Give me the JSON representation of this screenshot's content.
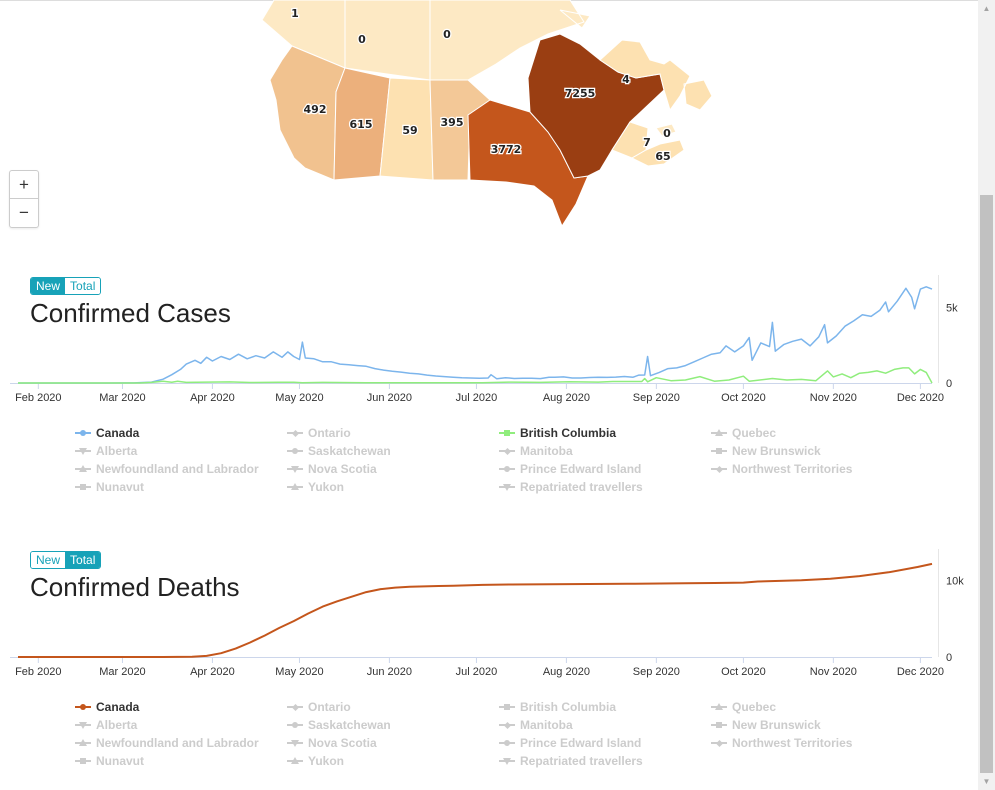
{
  "map": {
    "zoom_in": "+",
    "zoom_out": "−",
    "regions": [
      {
        "name": "Yukon",
        "value": "1",
        "color": "#fde9c4"
      },
      {
        "name": "Northwest Territories",
        "value": "0",
        "color": "#fde9c4"
      },
      {
        "name": "Nunavut",
        "value": "0",
        "color": "#fde9c4"
      },
      {
        "name": "British Columbia",
        "value": "492",
        "color": "#f1c28f"
      },
      {
        "name": "Alberta",
        "value": "615",
        "color": "#ecb07c"
      },
      {
        "name": "Saskatchewan",
        "value": "59",
        "color": "#fde1b1"
      },
      {
        "name": "Manitoba",
        "value": "395",
        "color": "#f3c897"
      },
      {
        "name": "Ontario",
        "value": "3772",
        "color": "#c4561c"
      },
      {
        "name": "Quebec",
        "value": "7255",
        "color": "#9a3e12"
      },
      {
        "name": "Newfoundland and Labrador",
        "value": "4",
        "color": "#fde1b1"
      },
      {
        "name": "New Brunswick",
        "value": "7",
        "color": "#fde1b1"
      },
      {
        "name": "Prince Edward Island",
        "value": "0",
        "color": "#fde9c4"
      },
      {
        "name": "Nova Scotia",
        "value": "65",
        "color": "#fde1b1"
      }
    ]
  },
  "cases": {
    "toggle": {
      "new": "New",
      "total": "Total",
      "active": "new"
    },
    "title": "Confirmed Cases"
  },
  "deaths": {
    "toggle": {
      "new": "New",
      "total": "Total",
      "active": "total"
    },
    "title": "Confirmed Deaths"
  },
  "legend_items": [
    {
      "label": "Canada",
      "marker": "circle"
    },
    {
      "label": "Ontario",
      "marker": "diamond"
    },
    {
      "label": "British Columbia",
      "marker": "square"
    },
    {
      "label": "Quebec",
      "marker": "triangle"
    },
    {
      "label": "Alberta",
      "marker": "triangle-down"
    },
    {
      "label": "Saskatchewan",
      "marker": "circle"
    },
    {
      "label": "Manitoba",
      "marker": "diamond"
    },
    {
      "label": "New Brunswick",
      "marker": "square"
    },
    {
      "label": "Newfoundland and Labrador",
      "marker": "triangle"
    },
    {
      "label": "Nova Scotia",
      "marker": "triangle-down"
    },
    {
      "label": "Prince Edward Island",
      "marker": "circle"
    },
    {
      "label": "Northwest Territories",
      "marker": "diamond"
    },
    {
      "label": "Nunavut",
      "marker": "square"
    },
    {
      "label": "Yukon",
      "marker": "triangle"
    },
    {
      "label": "Repatriated travellers",
      "marker": "triangle-down"
    }
  ],
  "cases_legend_active": {
    "Canada": "#7cb5ec",
    "British Columbia": "#90ed7d"
  },
  "deaths_legend_active": {
    "Canada": "#c4561c"
  },
  "chart_data": [
    {
      "type": "line",
      "title": "Confirmed Cases",
      "x_unit": "days since 2020-01-25",
      "x_ticks": [
        "Feb 2020",
        "Mar 2020",
        "Apr 2020",
        "May 2020",
        "Jun 2020",
        "Jul 2020",
        "Aug 2020",
        "Sep 2020",
        "Oct 2020",
        "Nov 2020",
        "Dec 2020"
      ],
      "x_tick_days": [
        7,
        36,
        67,
        97,
        128,
        158,
        189,
        220,
        250,
        281,
        311
      ],
      "x_range": [
        0,
        315
      ],
      "y_ticks": [
        "0",
        "5k"
      ],
      "y_tick_values": [
        0,
        5000
      ],
      "ylim": [
        0,
        6800
      ],
      "series": [
        {
          "name": "Canada",
          "color": "#7cb5ec",
          "points": [
            [
              0,
              0
            ],
            [
              30,
              0
            ],
            [
              40,
              5
            ],
            [
              46,
              60
            ],
            [
              50,
              250
            ],
            [
              53,
              550
            ],
            [
              56,
              900
            ],
            [
              58,
              1250
            ],
            [
              61,
              1500
            ],
            [
              63,
              1300
            ],
            [
              65,
              1700
            ],
            [
              67,
              1450
            ],
            [
              70,
              1750
            ],
            [
              73,
              1550
            ],
            [
              76,
              1900
            ],
            [
              79,
              1600
            ],
            [
              82,
              1800
            ],
            [
              85,
              1650
            ],
            [
              88,
              2050
            ],
            [
              91,
              1700
            ],
            [
              93,
              2050
            ],
            [
              95,
              1750
            ],
            [
              97,
              1550
            ],
            [
              98,
              2700
            ],
            [
              99,
              1650
            ],
            [
              102,
              1600
            ],
            [
              105,
              1400
            ],
            [
              108,
              1400
            ],
            [
              111,
              1250
            ],
            [
              114,
              1200
            ],
            [
              117,
              1150
            ],
            [
              120,
              1100
            ],
            [
              123,
              950
            ],
            [
              126,
              850
            ],
            [
              129,
              780
            ],
            [
              132,
              720
            ],
            [
              135,
              650
            ],
            [
              138,
              600
            ],
            [
              141,
              520
            ],
            [
              144,
              460
            ],
            [
              147,
              420
            ],
            [
              150,
              380
            ],
            [
              153,
              350
            ],
            [
              156,
              330
            ],
            [
              159,
              320
            ],
            [
              162,
              330
            ],
            [
              163,
              550
            ],
            [
              165,
              280
            ],
            [
              168,
              350
            ],
            [
              171,
              300
            ],
            [
              174,
              320
            ],
            [
              177,
              320
            ],
            [
              180,
              290
            ],
            [
              183,
              380
            ],
            [
              185,
              380
            ],
            [
              188,
              400
            ],
            [
              191,
              330
            ],
            [
              194,
              330
            ],
            [
              197,
              360
            ],
            [
              200,
              380
            ],
            [
              203,
              370
            ],
            [
              206,
              390
            ],
            [
              209,
              430
            ],
            [
              212,
              380
            ],
            [
              214,
              520
            ],
            [
              216,
              530
            ],
            [
              217,
              1750
            ],
            [
              218,
              480
            ],
            [
              221,
              700
            ],
            [
              224,
              950
            ],
            [
              227,
              1000
            ],
            [
              230,
              1150
            ],
            [
              233,
              1400
            ],
            [
              236,
              1650
            ],
            [
              239,
              1900
            ],
            [
              242,
              2000
            ],
            [
              244,
              2450
            ],
            [
              247,
              2050
            ],
            [
              250,
              2450
            ],
            [
              252,
              3000
            ],
            [
              253,
              1500
            ],
            [
              256,
              2650
            ],
            [
              259,
              2400
            ],
            [
              260,
              4000
            ],
            [
              261,
              2100
            ],
            [
              264,
              2550
            ],
            [
              267,
              2750
            ],
            [
              270,
              2900
            ],
            [
              273,
              2450
            ],
            [
              276,
              3050
            ],
            [
              278,
              3850
            ],
            [
              279,
              2650
            ],
            [
              282,
              3100
            ],
            [
              285,
              3750
            ],
            [
              288,
              4100
            ],
            [
              291,
              4500
            ],
            [
              294,
              4400
            ],
            [
              297,
              4800
            ],
            [
              299,
              5350
            ],
            [
              300,
              4700
            ],
            [
              303,
              5400
            ],
            [
              306,
              6250
            ],
            [
              308,
              5650
            ],
            [
              309,
              4900
            ],
            [
              311,
              6200
            ],
            [
              313,
              6350
            ],
            [
              315,
              6200
            ]
          ]
        },
        {
          "name": "British Columbia",
          "color": "#90ed7d",
          "points": [
            [
              0,
              0
            ],
            [
              42,
              0
            ],
            [
              46,
              40
            ],
            [
              50,
              120
            ],
            [
              53,
              50
            ],
            [
              55,
              110
            ],
            [
              58,
              40
            ],
            [
              65,
              60
            ],
            [
              73,
              70
            ],
            [
              80,
              30
            ],
            [
              90,
              50
            ],
            [
              95,
              50
            ],
            [
              98,
              20
            ],
            [
              105,
              40
            ],
            [
              120,
              20
            ],
            [
              140,
              10
            ],
            [
              160,
              20
            ],
            [
              170,
              60
            ],
            [
              180,
              40
            ],
            [
              190,
              80
            ],
            [
              200,
              60
            ],
            [
              205,
              100
            ],
            [
              215,
              100
            ],
            [
              216,
              300
            ],
            [
              217,
              80
            ],
            [
              220,
              350
            ],
            [
              225,
              150
            ],
            [
              230,
              200
            ],
            [
              235,
              420
            ],
            [
              240,
              120
            ],
            [
              245,
              200
            ],
            [
              250,
              450
            ],
            [
              252,
              120
            ],
            [
              260,
              300
            ],
            [
              265,
              200
            ],
            [
              270,
              240
            ],
            [
              275,
              150
            ],
            [
              279,
              800
            ],
            [
              281,
              400
            ],
            [
              284,
              600
            ],
            [
              287,
              350
            ],
            [
              290,
              650
            ],
            [
              293,
              700
            ],
            [
              296,
              800
            ],
            [
              299,
              650
            ],
            [
              302,
              900
            ],
            [
              305,
              1000
            ],
            [
              307,
              1000
            ],
            [
              309,
              600
            ],
            [
              311,
              900
            ],
            [
              313,
              700
            ],
            [
              315,
              0
            ]
          ]
        }
      ]
    },
    {
      "type": "line",
      "title": "Confirmed Deaths",
      "x_unit": "days since 2020-01-25",
      "x_ticks": [
        "Feb 2020",
        "Mar 2020",
        "Apr 2020",
        "May 2020",
        "Jun 2020",
        "Jul 2020",
        "Aug 2020",
        "Sep 2020",
        "Oct 2020",
        "Nov 2020",
        "Dec 2020"
      ],
      "x_tick_days": [
        7,
        36,
        67,
        97,
        128,
        158,
        189,
        220,
        250,
        281,
        311
      ],
      "x_range": [
        0,
        315
      ],
      "y_ticks": [
        "0",
        "10k"
      ],
      "y_tick_values": [
        0,
        10000
      ],
      "ylim": [
        0,
        13500
      ],
      "series": [
        {
          "name": "Canada",
          "color": "#c4561c",
          "points": [
            [
              0,
              0
            ],
            [
              50,
              0
            ],
            [
              60,
              20
            ],
            [
              65,
              150
            ],
            [
              70,
              500
            ],
            [
              75,
              1100
            ],
            [
              80,
              1900
            ],
            [
              85,
              2800
            ],
            [
              90,
              3800
            ],
            [
              95,
              4700
            ],
            [
              100,
              5700
            ],
            [
              105,
              6600
            ],
            [
              110,
              7300
            ],
            [
              115,
              7900
            ],
            [
              120,
              8500
            ],
            [
              125,
              8900
            ],
            [
              130,
              9100
            ],
            [
              135,
              9200
            ],
            [
              140,
              9250
            ],
            [
              145,
              9300
            ],
            [
              150,
              9350
            ],
            [
              160,
              9450
            ],
            [
              170,
              9500
            ],
            [
              190,
              9560
            ],
            [
              210,
              9600
            ],
            [
              230,
              9660
            ],
            [
              240,
              9700
            ],
            [
              250,
              9750
            ],
            [
              255,
              9900
            ],
            [
              270,
              10050
            ],
            [
              280,
              10250
            ],
            [
              290,
              10600
            ],
            [
              300,
              11100
            ],
            [
              310,
              11800
            ],
            [
              315,
              12200
            ]
          ]
        }
      ]
    }
  ]
}
